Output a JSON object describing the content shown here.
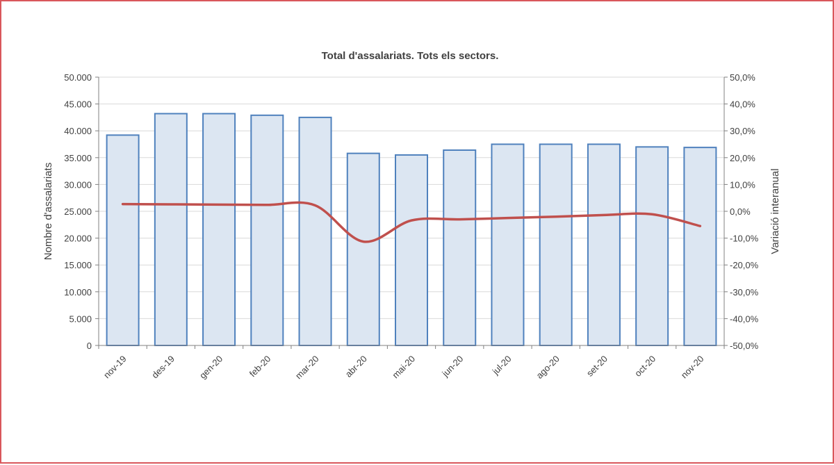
{
  "chart_data": {
    "type": "bar",
    "title": "Total d'assalariats. Tots els sectors.",
    "categories": [
      "nov-19",
      "des-19",
      "gen-20",
      "feb-20",
      "mar-20",
      "abr-20",
      "mai-20",
      "jun-20",
      "jul-20",
      "ago-20",
      "set-20",
      "oct-20",
      "nov-20"
    ],
    "series": [
      {
        "type": "bar",
        "axis": "left",
        "color": "#4f81bd",
        "fill": "#dce6f2",
        "values": [
          39200,
          43200,
          43200,
          42900,
          42500,
          35800,
          35500,
          36400,
          37500,
          37500,
          37500,
          37000,
          36900
        ]
      },
      {
        "type": "line",
        "axis": "right",
        "color": "#c0504d",
        "values": [
          2.7,
          2.6,
          2.5,
          2.4,
          2.2,
          -11.3,
          -3.4,
          -3.0,
          -2.5,
          -2.0,
          -1.4,
          -1.1,
          -5.5
        ]
      }
    ],
    "y_left": {
      "label": "Nombre d'assalariats",
      "range": [
        0,
        50000
      ],
      "ticks": [
        "0",
        "5.000",
        "10.000",
        "15.000",
        "20.000",
        "25.000",
        "30.000",
        "35.000",
        "40.000",
        "45.000",
        "50.000"
      ]
    },
    "y_right": {
      "label": "Variació interanual",
      "range": [
        -50,
        50
      ],
      "ticks": [
        "-50,0%",
        "-40,0%",
        "-30,0%",
        "-20,0%",
        "-10,0%",
        "0,0%",
        "10,0%",
        "20,0%",
        "30,0%",
        "40,0%",
        "50,0%"
      ]
    },
    "grid": true,
    "legend": "none"
  }
}
